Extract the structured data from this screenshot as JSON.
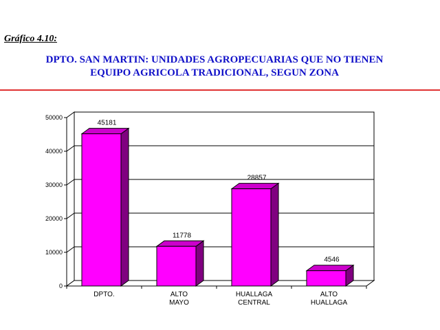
{
  "figure_label": "Gráfico 4.10:",
  "title_line1": "DPTO. SAN MARTIN: UNIDADES AGROPECUARIAS QUE NO TIENEN",
  "title_line2": "EQUIPO AGRICOLA TRADICIONAL, SEGUN ZONA",
  "colors": {
    "bar_front": "#ff00ff",
    "bar_top": "#cc00cc",
    "bar_side": "#800080",
    "title": "#1010c8",
    "rule": "#e03030"
  },
  "chart_data": {
    "type": "bar",
    "categories": [
      [
        "DPTO."
      ],
      [
        "ALTO",
        "MAYO"
      ],
      [
        "HUALLAGA",
        "CENTRAL"
      ],
      [
        "ALTO",
        "HUALLAGA"
      ]
    ],
    "values": [
      45181,
      11778,
      28857,
      4546
    ],
    "ylim": [
      0,
      50000
    ],
    "yticks": [
      "0",
      "10000",
      "20000",
      "30000",
      "40000",
      "50000"
    ],
    "grid": true,
    "legend": "none"
  }
}
